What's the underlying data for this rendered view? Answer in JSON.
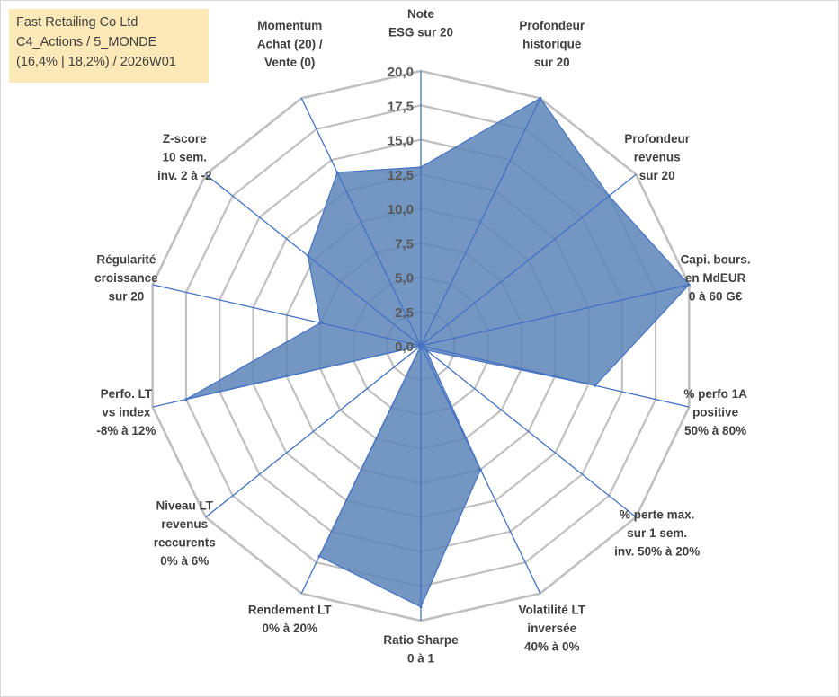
{
  "info": {
    "company": "Fast Retailing Co Ltd",
    "portfolio": "C4_Actions / 5_MONDE",
    "stats": "(16,4% | 18,2%) / 2026W01"
  },
  "chart_data": {
    "type": "radar",
    "r_min": 0,
    "r_max": 20,
    "ticks": [
      "0,0",
      "2,5",
      "5,0",
      "7,5",
      "10,0",
      "12,5",
      "15,0",
      "17,5",
      "20,0"
    ],
    "grid": true,
    "axes": [
      [
        "Note",
        "ESG sur 20"
      ],
      [
        "Profondeur",
        "historique",
        "sur 20"
      ],
      [
        "Profondeur",
        "revenus",
        "sur 20"
      ],
      [
        "Capi. bours.",
        "en MdEUR",
        "0 à 60 G€"
      ],
      [
        "% perfo 1A",
        "positive",
        "50% à 80%"
      ],
      [
        "% perte max.",
        "sur 1 sem.",
        "inv. 50% à 20%"
      ],
      [
        "Volatilité LT",
        "inversée",
        "40% à 0%"
      ],
      [
        "Ratio Sharpe",
        "0 à 1"
      ],
      [
        "Rendement LT",
        "0% à 20%"
      ],
      [
        "Niveau LT",
        "revenus",
        "reccurents",
        "0% à 6%"
      ],
      [
        "Perfo. LT",
        "vs index",
        "-8% à 12%"
      ],
      [
        "Régularité",
        "croissance",
        "sur 20"
      ],
      [
        "Z-score",
        "10 sem.",
        "inv. 2 à -2"
      ],
      [
        "Momentum",
        "Achat (20) /",
        "Vente (0)"
      ]
    ],
    "values": [
      13.0,
      20.0,
      17.5,
      20.0,
      13.0,
      0.5,
      10.0,
      19.0,
      17.0,
      0.0,
      17.5,
      7.5,
      10.5,
      14.0
    ],
    "colors": {
      "fill": "#5b84b8",
      "stroke": "#4472c4",
      "grid": "#c0c0c0",
      "spoke": "#4472c4"
    }
  }
}
